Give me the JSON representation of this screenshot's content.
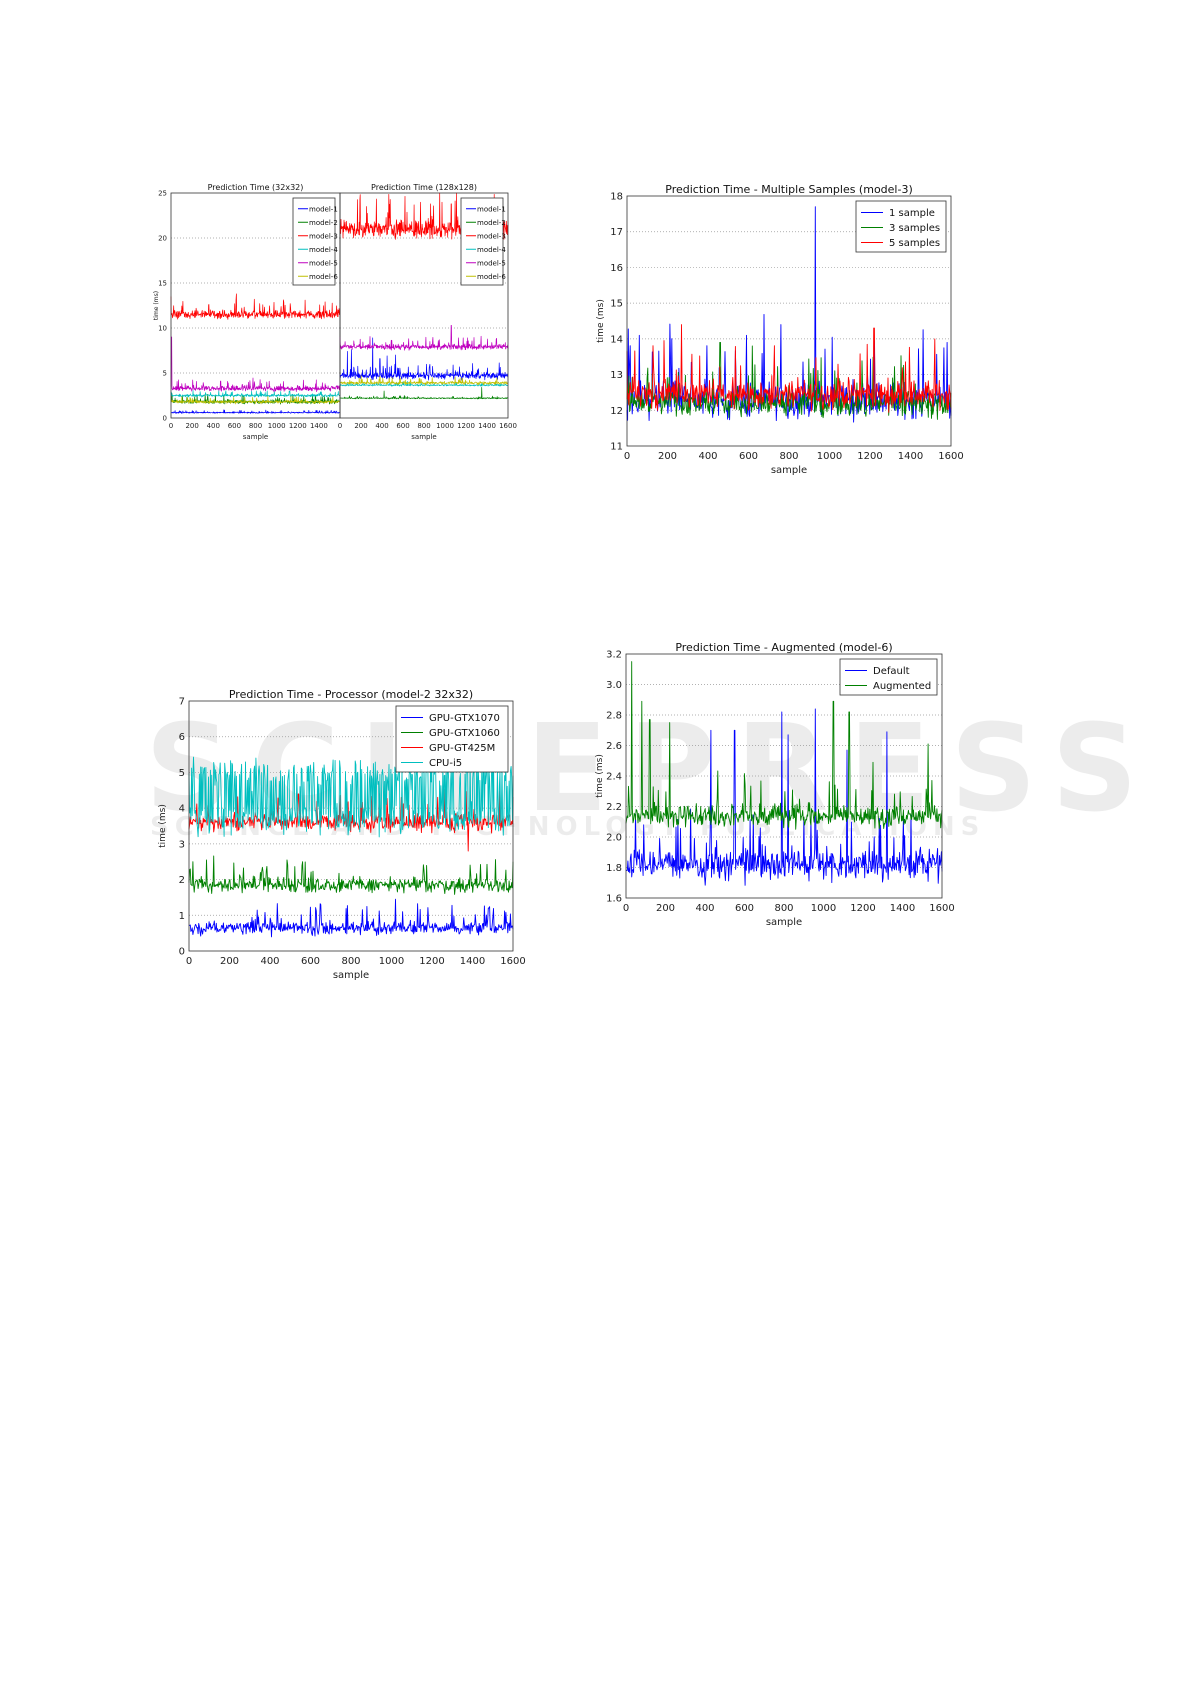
{
  "watermark": {
    "logo": "SCITEPRESS",
    "tagline": "SCIENCE AND TECHNOLOGY PUBLICATIONS"
  },
  "colors": {
    "blue": "#0000ff",
    "green": "#008000",
    "red": "#ff0000",
    "cyan": "#00bfbf",
    "magenta": "#bf00bf",
    "yellow": "#bfbf00"
  },
  "chart_data": [
    {
      "id": "c1a",
      "type": "line",
      "title": "Prediction Time (32x32)",
      "xlabel": "sample",
      "ylabel": "time (ms)",
      "xlim": [
        0,
        1600
      ],
      "ylim": [
        0,
        25
      ],
      "xticks": [
        0,
        200,
        400,
        600,
        800,
        1000,
        1200,
        1400
      ],
      "yticks": [
        0,
        5,
        10,
        15,
        20,
        25
      ],
      "grid": true,
      "legend": "top-right",
      "series": [
        {
          "name": "model-1",
          "color": "#0000ff",
          "base": 0.6,
          "noise": 0.05,
          "spikes": [
            [
              500,
              0.9
            ]
          ]
        },
        {
          "name": "model-2",
          "color": "#008000",
          "base": 1.8,
          "noise": 0.15,
          "spikes": [
            [
              10,
              2.7
            ],
            [
              150,
              2.3
            ]
          ]
        },
        {
          "name": "model-3",
          "color": "#ff0000",
          "base": 11.5,
          "noise": 0.3,
          "spikes": [
            [
              0,
              13.5
            ],
            [
              620,
              13.8
            ],
            [
              1270,
              13.1
            ],
            [
              1460,
              12.9
            ]
          ]
        },
        {
          "name": "model-4",
          "color": "#00bfbf",
          "base": 2.5,
          "noise": 0.1,
          "spikes": [
            [
              0,
              2.9
            ],
            [
              1120,
              3.0
            ]
          ]
        },
        {
          "name": "model-5",
          "color": "#bf00bf",
          "base": 3.3,
          "noise": 0.2,
          "spikes": [
            [
              5,
              9.0
            ],
            [
              470,
              4.1
            ]
          ]
        },
        {
          "name": "model-6",
          "color": "#bfbf00",
          "base": 1.8,
          "noise": 0.12,
          "spikes": [
            [
              700,
              2.3
            ]
          ]
        }
      ]
    },
    {
      "id": "c1b",
      "type": "line",
      "title": "Prediction Time (128x128)",
      "xlabel": "sample",
      "ylabel": "",
      "xlim": [
        0,
        1600
      ],
      "ylim": [
        0,
        25
      ],
      "xticks": [
        0,
        200,
        400,
        600,
        800,
        1000,
        1200,
        1400,
        1600
      ],
      "yticks": [
        0,
        5,
        10,
        15,
        20,
        25
      ],
      "grid": true,
      "legend": "top-right",
      "series": [
        {
          "name": "model-1",
          "color": "#0000ff",
          "base": 4.7,
          "noise": 0.25,
          "spikes": [
            [
              70,
              7.4
            ],
            [
              110,
              7.6
            ],
            [
              310,
              8.9
            ],
            [
              380,
              6.6
            ],
            [
              450,
              6.9
            ],
            [
              530,
              7.0
            ]
          ]
        },
        {
          "name": "model-2",
          "color": "#008000",
          "base": 2.2,
          "noise": 0.05,
          "spikes": [
            [
              420,
              3.0
            ],
            [
              1350,
              3.4
            ]
          ]
        },
        {
          "name": "model-3",
          "color": "#ff0000",
          "base": 21,
          "noise": 0.7,
          "spikes": [
            [
              190,
              24.3
            ],
            [
              950,
              25
            ],
            [
              1060,
              23.8
            ]
          ]
        },
        {
          "name": "model-4",
          "color": "#00bfbf",
          "base": 3.65,
          "noise": 0.07,
          "spikes": []
        },
        {
          "name": "model-5",
          "color": "#bf00bf",
          "base": 7.9,
          "noise": 0.2,
          "spikes": [
            [
              0,
              9.0
            ],
            [
              1060,
              10.3
            ]
          ]
        },
        {
          "name": "model-6",
          "color": "#bfbf00",
          "base": 3.9,
          "noise": 0.12,
          "spikes": [
            [
              380,
              4.6
            ]
          ]
        }
      ]
    },
    {
      "id": "c2",
      "type": "line",
      "title": "Prediction Time - Multiple Samples (model-3)",
      "xlabel": "sample",
      "ylabel": "time (ms)",
      "xlim": [
        0,
        1600
      ],
      "ylim": [
        11,
        18
      ],
      "xticks": [
        0,
        200,
        400,
        600,
        800,
        1000,
        1200,
        1400,
        1600
      ],
      "yticks": [
        11,
        12,
        13,
        14,
        15,
        16,
        17,
        18
      ],
      "grid": true,
      "legend": "top-right",
      "series": [
        {
          "name": "1 sample",
          "color": "#0000ff",
          "base": 12.3,
          "noise": 0.35,
          "spikes": [
            [
              60,
              14.1
            ],
            [
              590,
              14.1
            ],
            [
              760,
              14.4
            ],
            [
              930,
              17.7
            ],
            [
              1580,
              13.9
            ]
          ]
        },
        {
          "name": "3 samples",
          "color": "#008000",
          "base": 12.2,
          "noise": 0.25,
          "spikes": [
            [
              460,
              13.9
            ],
            [
              620,
              13.8
            ]
          ]
        },
        {
          "name": "5 samples",
          "color": "#ff0000",
          "base": 12.45,
          "noise": 0.28,
          "spikes": [
            [
              270,
              14.4
            ],
            [
              1220,
              14.3
            ],
            [
              1520,
              14.0
            ]
          ]
        }
      ]
    },
    {
      "id": "c3",
      "type": "line",
      "title": "Prediction Time - Processor (model-2 32x32)",
      "xlabel": "sample",
      "ylabel": "time (ms)",
      "xlim": [
        0,
        1600
      ],
      "ylim": [
        0,
        7
      ],
      "xticks": [
        0,
        200,
        400,
        600,
        800,
        1000,
        1200,
        1400,
        1600
      ],
      "yticks": [
        0,
        1,
        2,
        3,
        4,
        5,
        6,
        7
      ],
      "grid": true,
      "legend": "top-right",
      "series": [
        {
          "name": "GPU-GTX1070",
          "color": "#0000ff",
          "base": 0.65,
          "noise": 0.13,
          "spikes": [
            [
              650,
              1.3
            ],
            [
              1480,
              1.2
            ]
          ]
        },
        {
          "name": "GPU-GTX1060",
          "color": "#008000",
          "base": 1.85,
          "noise": 0.15,
          "spikes": [
            [
              20,
              2.5
            ],
            [
              560,
              2.5
            ],
            [
              1600,
              2.5
            ]
          ]
        },
        {
          "name": "GPU-GT425M",
          "color": "#ff0000",
          "base": 3.6,
          "noise": 0.18,
          "spikes": [
            [
              540,
              4.4
            ],
            [
              1380,
              2.8
            ],
            [
              1050,
              4.3
            ]
          ]
        },
        {
          "name": "CPU-i5",
          "color": "#00bfbf",
          "base": 3.7,
          "noise": 0.3,
          "bimodal": 5.0,
          "spikes": [
            [
              330,
              5.4
            ]
          ]
        }
      ]
    },
    {
      "id": "c4",
      "type": "line",
      "title": "Prediction Time - Augmented (model-6)",
      "xlabel": "sample",
      "ylabel": "time (ms)",
      "xlim": [
        0,
        1600
      ],
      "ylim": [
        1.6,
        3.2
      ],
      "xticks": [
        0,
        200,
        400,
        600,
        800,
        1000,
        1200,
        1400,
        1600
      ],
      "yticks": [
        "1.6",
        "1.8",
        "2.0",
        "2.2",
        "2.4",
        "2.6",
        "2.8",
        "3.0",
        "3.2"
      ],
      "grid": true,
      "legend": "top-right",
      "series": [
        {
          "name": "Default",
          "color": "#0000ff",
          "base": 1.82,
          "noise": 0.07,
          "spikes": [
            [
              430,
              2.7
            ],
            [
              550,
              2.7
            ],
            [
              790,
              2.82
            ],
            [
              820,
              2.67
            ],
            [
              960,
              2.84
            ],
            [
              1120,
              2.57
            ],
            [
              1320,
              2.69
            ]
          ]
        },
        {
          "name": "Augmented",
          "color": "#008000",
          "base": 2.14,
          "noise": 0.05,
          "spikes": [
            [
              30,
              3.15
            ],
            [
              80,
              2.89
            ],
            [
              120,
              2.77
            ],
            [
              220,
              2.75
            ],
            [
              1050,
              2.89
            ],
            [
              1130,
              2.82
            ],
            [
              1250,
              2.49
            ],
            [
              1530,
              2.61
            ]
          ]
        }
      ]
    }
  ]
}
